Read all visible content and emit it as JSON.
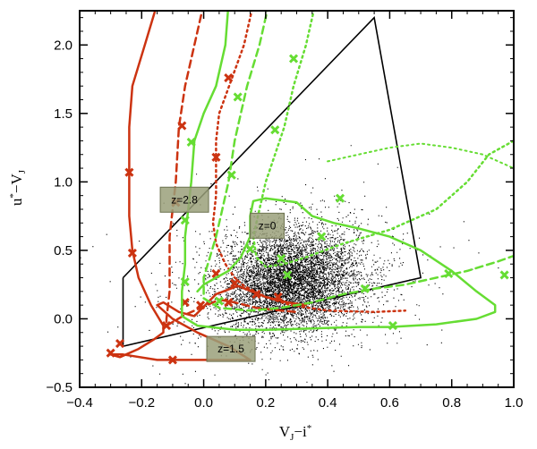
{
  "chart_data": {
    "type": "scatter",
    "xlabel": "V",
    "xlabel_sub": "J",
    "xlabel_rest": "−i",
    "xlabel_sup": "*",
    "ylabel": "u",
    "ylabel_sup": "*",
    "ylabel_rest": "−V",
    "ylabel_sub": "J",
    "xlim": [
      -0.4,
      1.0
    ],
    "ylim": [
      -0.5,
      2.25
    ],
    "xticks": [
      {
        "value": -0.4,
        "label": "−0.4"
      },
      {
        "value": -0.2,
        "label": "−0.2"
      },
      {
        "value": 0.0,
        "label": "0.0"
      },
      {
        "value": 0.2,
        "label": "0.2"
      },
      {
        "value": 0.4,
        "label": "0.4"
      },
      {
        "value": 0.6,
        "label": "0.6"
      },
      {
        "value": 0.8,
        "label": "0.8"
      },
      {
        "value": 1.0,
        "label": "1.0"
      }
    ],
    "yticks": [
      {
        "value": -0.5,
        "label": "−0.5"
      },
      {
        "value": 0.0,
        "label": "0.0"
      },
      {
        "value": 0.5,
        "label": "0.5"
      },
      {
        "value": 1.0,
        "label": "1.0"
      },
      {
        "value": 1.5,
        "label": "1.5"
      },
      {
        "value": 2.0,
        "label": "2.0"
      }
    ],
    "selection_box": {
      "color": "#000000",
      "points": [
        [
          -0.26,
          0.3
        ],
        [
          -0.26,
          -0.2
        ],
        [
          0.7,
          0.3
        ],
        [
          0.55,
          2.2
        ],
        [
          -0.26,
          0.3
        ]
      ]
    },
    "scatter_cloud": {
      "color": "#000000",
      "count": 6500,
      "center": [
        0.28,
        0.28
      ],
      "spread": [
        0.11,
        0.18
      ]
    },
    "series": [
      {
        "name": "red solid",
        "color": "#cc3311",
        "dash": "solid",
        "width": 2.5,
        "points": [
          [
            -0.15,
            2.3
          ],
          [
            -0.19,
            2.0
          ],
          [
            -0.23,
            1.7
          ],
          [
            -0.24,
            1.4
          ],
          [
            -0.24,
            1.0
          ],
          [
            -0.24,
            0.75
          ],
          [
            -0.23,
            0.5
          ],
          [
            -0.21,
            0.3
          ],
          [
            -0.17,
            0.1
          ],
          [
            -0.13,
            -0.05
          ],
          [
            -0.13,
            -0.1
          ],
          [
            -0.16,
            -0.15
          ],
          [
            -0.21,
            -0.22
          ],
          [
            -0.27,
            -0.28
          ],
          [
            -0.3,
            -0.26
          ],
          [
            -0.26,
            -0.26
          ],
          [
            -0.15,
            -0.3
          ],
          [
            0.0,
            -0.3
          ],
          [
            0.15,
            -0.3
          ],
          [
            0.08,
            -0.2
          ],
          [
            -0.02,
            -0.1
          ],
          [
            -0.1,
            0.0
          ],
          [
            -0.15,
            0.1
          ],
          [
            -0.13,
            0.12
          ],
          [
            -0.08,
            0.05
          ],
          [
            -0.03,
            0.02
          ],
          [
            0.04,
            0.18
          ],
          [
            0.11,
            0.24
          ],
          [
            0.2,
            0.16
          ],
          [
            0.27,
            0.12
          ],
          [
            0.33,
            0.1
          ]
        ],
        "markers": [
          [
            -0.24,
            1.07
          ],
          [
            -0.23,
            0.48
          ],
          [
            -0.3,
            -0.25
          ],
          [
            -0.27,
            -0.18
          ],
          [
            -0.12,
            -0.05
          ],
          [
            -0.1,
            -0.3
          ]
        ]
      },
      {
        "name": "red dashed",
        "color": "#cc3311",
        "dash": "8,5",
        "width": 2.5,
        "points": [
          [
            0.0,
            2.3
          ],
          [
            -0.03,
            2.0
          ],
          [
            -0.06,
            1.7
          ],
          [
            -0.08,
            1.4
          ],
          [
            -0.09,
            1.0
          ],
          [
            -0.1,
            0.8
          ],
          [
            -0.11,
            0.6
          ],
          [
            -0.11,
            0.4
          ],
          [
            -0.11,
            0.2
          ],
          [
            -0.12,
            0.0
          ],
          [
            -0.12,
            -0.05
          ],
          [
            -0.06,
            0.03
          ],
          [
            0.0,
            0.09
          ],
          [
            0.05,
            0.14
          ],
          [
            0.1,
            0.12
          ],
          [
            0.17,
            0.08
          ],
          [
            0.25,
            0.06
          ],
          [
            0.3,
            0.05
          ]
        ],
        "markers": [
          [
            -0.07,
            1.41
          ],
          [
            -0.09,
            0.85
          ],
          [
            -0.06,
            0.12
          ],
          [
            -0.01,
            0.1
          ],
          [
            0.08,
            0.12
          ]
        ]
      },
      {
        "name": "red dotted",
        "color": "#cc3311",
        "dash": "2,4",
        "width": 2.5,
        "points": [
          [
            0.16,
            2.3
          ],
          [
            0.13,
            2.0
          ],
          [
            0.09,
            1.75
          ],
          [
            0.05,
            1.5
          ],
          [
            0.04,
            1.3
          ],
          [
            0.04,
            1.1
          ],
          [
            0.04,
            0.9
          ],
          [
            0.03,
            0.7
          ],
          [
            0.04,
            0.55
          ],
          [
            0.07,
            0.4
          ],
          [
            0.1,
            0.3
          ],
          [
            0.13,
            0.24
          ],
          [
            0.2,
            0.16
          ],
          [
            0.28,
            0.1
          ],
          [
            0.4,
            0.06
          ],
          [
            0.55,
            0.05
          ],
          [
            0.65,
            0.06
          ]
        ],
        "markers": [
          [
            0.08,
            1.76
          ],
          [
            0.04,
            1.18
          ],
          [
            0.04,
            0.33
          ],
          [
            0.1,
            0.26
          ],
          [
            0.17,
            0.18
          ],
          [
            0.24,
            0.16
          ]
        ]
      },
      {
        "name": "green solid",
        "color": "#66dd33",
        "dash": "solid",
        "width": 2.5,
        "points": [
          [
            0.08,
            2.3
          ],
          [
            0.07,
            2.0
          ],
          [
            0.04,
            1.7
          ],
          [
            0.0,
            1.5
          ],
          [
            -0.03,
            1.3
          ],
          [
            -0.04,
            1.0
          ],
          [
            -0.05,
            0.8
          ],
          [
            -0.06,
            0.6
          ],
          [
            -0.06,
            0.4
          ],
          [
            -0.07,
            0.2
          ],
          [
            -0.07,
            0.02
          ],
          [
            -0.02,
            -0.05
          ],
          [
            0.1,
            -0.08
          ],
          [
            0.2,
            -0.08
          ],
          [
            0.35,
            -0.07
          ],
          [
            0.5,
            -0.06
          ],
          [
            0.6,
            -0.06
          ],
          [
            0.75,
            -0.04
          ],
          [
            0.88,
            0.0
          ],
          [
            0.94,
            0.05
          ],
          [
            0.94,
            0.1
          ],
          [
            0.88,
            0.2
          ],
          [
            0.8,
            0.35
          ],
          [
            0.7,
            0.5
          ],
          [
            0.6,
            0.6
          ],
          [
            0.5,
            0.66
          ],
          [
            0.42,
            0.7
          ],
          [
            0.35,
            0.75
          ],
          [
            0.3,
            0.85
          ],
          [
            0.2,
            0.88
          ],
          [
            0.16,
            0.86
          ],
          [
            0.15,
            0.75
          ],
          [
            0.15,
            0.6
          ],
          [
            0.12,
            0.45
          ],
          [
            0.08,
            0.35
          ],
          [
            0.04,
            0.3
          ],
          [
            0.0,
            0.25
          ],
          [
            -0.02,
            0.2
          ]
        ],
        "markers": [
          [
            -0.04,
            1.29
          ],
          [
            -0.06,
            0.72
          ],
          [
            -0.06,
            0.27
          ],
          [
            0.05,
            0.13
          ],
          [
            0.38,
            0.6
          ],
          [
            0.52,
            0.22
          ],
          [
            0.61,
            -0.05
          ]
        ]
      },
      {
        "name": "green dashed",
        "color": "#66dd33",
        "dash": "8,5",
        "width": 2.5,
        "points": [
          [
            0.21,
            2.3
          ],
          [
            0.18,
            2.0
          ],
          [
            0.14,
            1.7
          ],
          [
            0.12,
            1.5
          ],
          [
            0.1,
            1.3
          ],
          [
            0.08,
            1.0
          ],
          [
            0.06,
            0.8
          ],
          [
            0.04,
            0.6
          ],
          [
            0.02,
            0.45
          ],
          [
            0.0,
            0.3
          ],
          [
            0.0,
            0.15
          ],
          [
            0.05,
            0.08
          ],
          [
            0.15,
            0.06
          ],
          [
            0.25,
            0.08
          ],
          [
            0.35,
            0.12
          ],
          [
            0.45,
            0.18
          ],
          [
            0.55,
            0.22
          ],
          [
            0.65,
            0.25
          ],
          [
            0.75,
            0.3
          ],
          [
            0.85,
            0.35
          ],
          [
            0.95,
            0.42
          ],
          [
            1.05,
            0.5
          ]
        ],
        "markers": [
          [
            0.11,
            1.62
          ],
          [
            0.09,
            1.05
          ],
          [
            0.15,
            0.51
          ],
          [
            0.27,
            0.32
          ],
          [
            0.79,
            0.33
          ]
        ]
      },
      {
        "name": "green dotted",
        "color": "#66dd33",
        "dash": "2,4",
        "width": 2.5,
        "points": [
          [
            0.36,
            2.3
          ],
          [
            0.33,
            2.0
          ],
          [
            0.29,
            1.7
          ],
          [
            0.26,
            1.4
          ],
          [
            0.23,
            1.2
          ],
          [
            0.2,
            1.0
          ],
          [
            0.18,
            0.8
          ],
          [
            0.16,
            0.6
          ],
          [
            0.17,
            0.45
          ],
          [
            0.2,
            0.38
          ],
          [
            0.26,
            0.4
          ],
          [
            0.33,
            0.45
          ],
          [
            0.45,
            0.55
          ],
          [
            0.6,
            0.65
          ],
          [
            0.75,
            0.8
          ],
          [
            0.85,
            1.0
          ],
          [
            0.92,
            1.2
          ],
          [
            1.0,
            1.3
          ]
        ],
        "markers": [
          [
            0.29,
            1.9
          ],
          [
            0.23,
            1.38
          ],
          [
            0.25,
            0.44
          ],
          [
            0.44,
            0.88
          ],
          [
            0.97,
            0.32
          ]
        ]
      },
      {
        "name": "green solid upper",
        "color": "#66dd33",
        "dash": "2,4",
        "width": 2.0,
        "points": [
          [
            0.4,
            1.15
          ],
          [
            0.5,
            1.2
          ],
          [
            0.6,
            1.25
          ],
          [
            0.7,
            1.28
          ],
          [
            0.8,
            1.25
          ],
          [
            0.9,
            1.2
          ],
          [
            1.0,
            1.1
          ]
        ],
        "markers": []
      }
    ],
    "annotations": [
      {
        "text": "z=2.8",
        "x": -0.14,
        "y": 0.87
      },
      {
        "text": "z=0",
        "x": 0.15,
        "y": 0.68
      },
      {
        "text": "z=1.5",
        "x": 0.01,
        "y": -0.22
      }
    ]
  }
}
